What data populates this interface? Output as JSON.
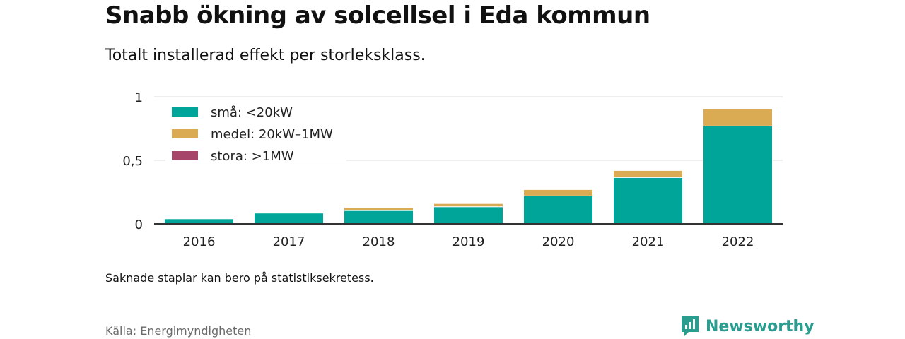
{
  "header": {
    "title": "Snabb ökning av solcellsel i Eda kommun",
    "subtitle": "Totalt installerad effekt per storleksklass."
  },
  "footer": {
    "note": "Saknade staplar kan bero på statistiksekretess.",
    "source": "Källa: Energimyndigheten",
    "brand": "Newsworthy"
  },
  "colors": {
    "small": "#00a59a",
    "medium": "#dbab54",
    "large": "#a6446a",
    "grid": "#dddddd",
    "axis": "#333333",
    "brand": "#2a9d8f"
  },
  "icons": {
    "brand_logo": "newsworthy-logo-icon"
  },
  "chart_data": {
    "type": "bar",
    "stacked": true,
    "title": "Snabb ökning av solcellsel i Eda kommun",
    "subtitle": "Totalt installerad effekt per storleksklass.",
    "xlabel": "",
    "ylabel": "",
    "categories": [
      "2016",
      "2017",
      "2018",
      "2019",
      "2020",
      "2021",
      "2022"
    ],
    "series": [
      {
        "name": "små: <20kW",
        "values": [
          0.04,
          0.085,
          0.105,
          0.135,
          0.22,
          0.365,
          0.77
        ]
      },
      {
        "name": "medel: 20kW–1MW",
        "values": [
          0,
          0,
          0.025,
          0.025,
          0.05,
          0.055,
          0.135
        ]
      },
      {
        "name": "stora: >1MW",
        "values": [
          0,
          0,
          0,
          0,
          0,
          0,
          0
        ]
      }
    ],
    "ylim": [
      0,
      1
    ],
    "yticks": [
      0,
      0.5,
      1
    ],
    "ytick_labels": [
      "0",
      "0,5",
      "1"
    ],
    "grid": true,
    "legend_position": "top-left"
  }
}
